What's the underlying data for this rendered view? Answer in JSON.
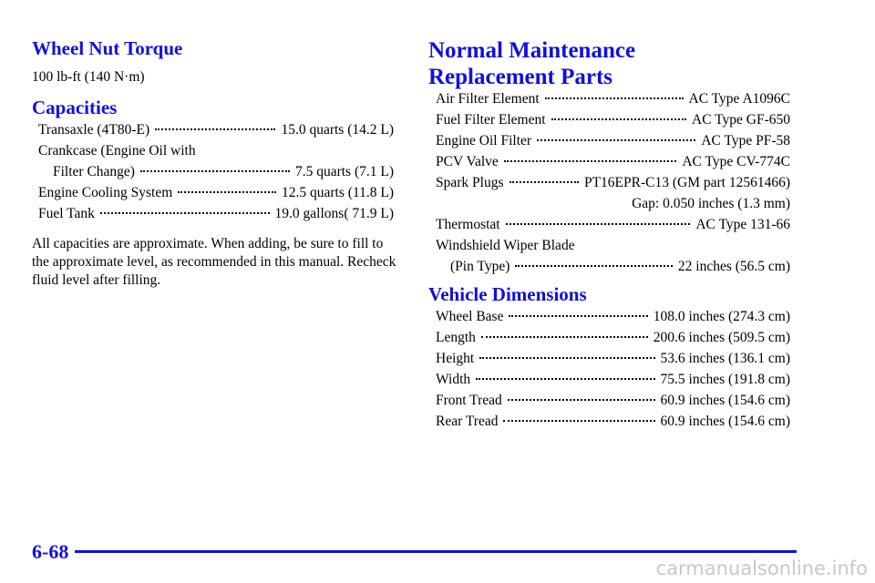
{
  "header": {
    "page_number": "6-68",
    "watermark": "carmanualsonline.info"
  },
  "wheel_nut_torque": {
    "title": "Wheel Nut Torque",
    "body": "100 lb-ft (140 N·m)"
  },
  "capacities": {
    "title": "Capacities",
    "items": [
      {
        "label": [
          "Transaxle (4T80-E)"
        ],
        "value": [
          "15.0 quarts (14.2 L)"
        ]
      },
      {
        "label": [
          "Crankcase (Engine Oil with",
          "Filter Change)"
        ],
        "value": [
          "7.5 quarts (7.1 L)"
        ]
      },
      {
        "label": [
          "Engine Cooling System"
        ],
        "value": [
          "12.5 quarts (11.8 L)"
        ]
      },
      {
        "label": [
          "Fuel Tank"
        ],
        "value": [
          "19.0 gallons( 71.9 L)"
        ]
      }
    ],
    "note": "All capacities are approximate. When adding, be sure to fill to the approximate level, as recommended in this manual. Recheck fluid level after filling."
  },
  "maintenance_parts": {
    "title": [
      "Normal Maintenance",
      "Replacement Parts"
    ],
    "items": [
      {
        "label": [
          "Air Filter Element"
        ],
        "value": [
          "AC Type A1096C"
        ]
      },
      {
        "label": [
          "Fuel Filter Element"
        ],
        "value": [
          "AC Type GF-650"
        ]
      },
      {
        "label": [
          "Engine Oil Filter"
        ],
        "value": [
          "AC Type PF-58"
        ]
      },
      {
        "label": [
          "PCV Valve"
        ],
        "value": [
          "AC Type CV-774C"
        ]
      },
      {
        "label": [
          "Spark Plugs"
        ],
        "value": [
          "PT16EPR-C13 (GM part 12561466)",
          "Gap: 0.050 inches (1.3 mm)"
        ]
      },
      {
        "label": [
          "Thermostat"
        ],
        "value": [
          "AC Type 131-66"
        ]
      },
      {
        "label": [
          "Windshield Wiper Blade",
          "(Pin Type)"
        ],
        "value": [
          "22 inches (56.5 cm)"
        ]
      }
    ]
  },
  "vehicle_dimensions": {
    "title": "Vehicle Dimensions",
    "items": [
      {
        "label": [
          "Wheel Base"
        ],
        "value": [
          "108.0 inches (274.3 cm)"
        ]
      },
      {
        "label": [
          "Length"
        ],
        "value": [
          "200.6 inches (509.5 cm)"
        ]
      },
      {
        "label": [
          "Height"
        ],
        "value": [
          "53.6 inches (136.1 cm)"
        ]
      },
      {
        "label": [
          "Width"
        ],
        "value": [
          "75.5 inches (191.8 cm)"
        ]
      },
      {
        "label": [
          "Front Tread"
        ],
        "value": [
          "60.9 inches (154.6 cm)"
        ]
      },
      {
        "label": [
          "Rear Tread"
        ],
        "value": [
          "60.9 inches (154.6 cm)"
        ]
      }
    ]
  }
}
